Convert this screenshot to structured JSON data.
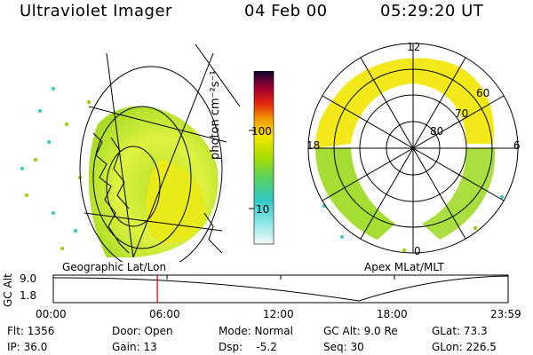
{
  "header": {
    "instrument": "Ultraviolet Imager",
    "date": "04 Feb 00",
    "time": "05:29:20 UT"
  },
  "colorbar": {
    "unit_label": "photon cm⁻²s⁻¹",
    "ticks": [
      "100",
      "10"
    ]
  },
  "panels": {
    "left_title": "Geographic Lat/Lon",
    "right_title": "Apex  MLat/MLT"
  },
  "polar": {
    "mlt_labels": {
      "top": "12",
      "right": "6",
      "bottom": "0",
      "left": "18"
    },
    "lat_labels": [
      "60",
      "70",
      "80"
    ]
  },
  "timeline": {
    "ylabel": "GC Alt",
    "y_top": "9.0",
    "y_bottom": "1.8",
    "x_ticks": [
      "00:00",
      "06:00",
      "12:00",
      "18:00",
      "23:59"
    ],
    "current_time_marker_fraction": 0.2287
  },
  "info": {
    "row1": [
      "Flt: 1356",
      "Door: Open",
      "Mode: Normal",
      "GC Alt: 9.0 Re",
      "GLat: 73.3"
    ],
    "row2": [
      "IP: 36.0",
      "Gain: 13",
      "Dsp:    -5.2",
      "Seq: 30",
      "GLon: 226.5"
    ]
  },
  "colors": {
    "marker": "#d00000",
    "aurora_bright": "#f2e600",
    "aurora_mid": "#8fd400",
    "aurora_low": "#33c8c8"
  }
}
